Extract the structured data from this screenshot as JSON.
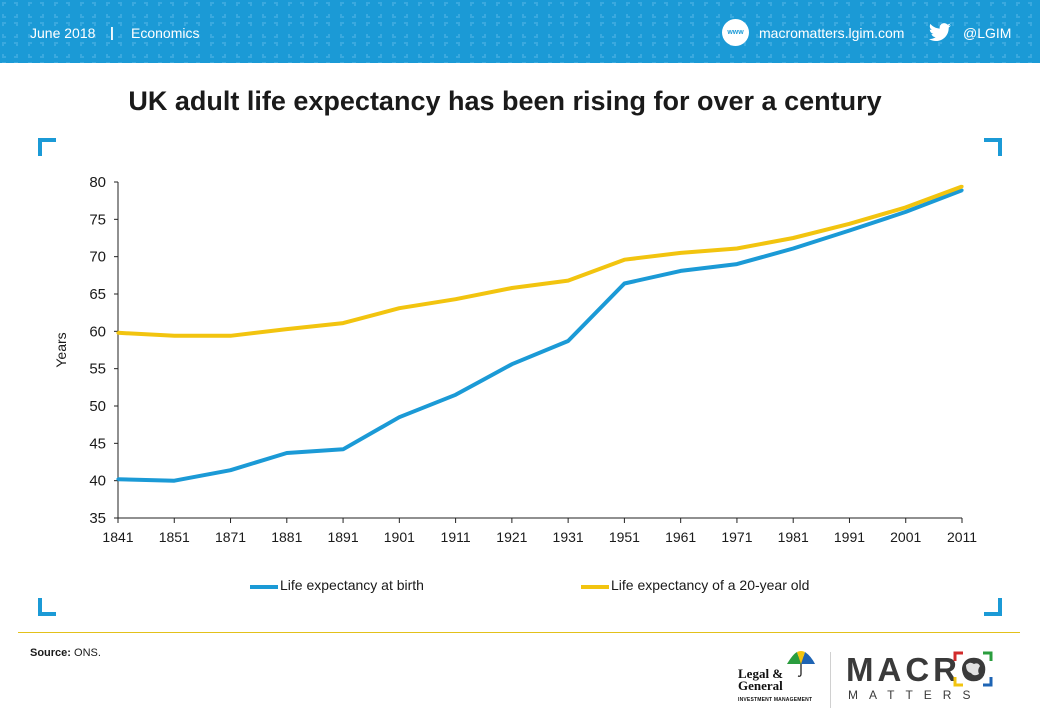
{
  "header": {
    "date": "June 2018",
    "separator": "|",
    "category": "Economics",
    "www_label": "www",
    "website": "macromatters.lgim.com",
    "twitter_handle": "@LGIM"
  },
  "colors": {
    "header_bg": "#1b9ad6",
    "accent_blue": "#1b9ad6",
    "accent_yellow": "#f2c40f",
    "rule": "#e3c11a"
  },
  "chart_data": {
    "type": "line",
    "title": "UK adult life expectancy has been rising for over a century",
    "xlabel": "",
    "ylabel": "Years",
    "ylim": [
      35,
      80
    ],
    "yticks": [
      35,
      40,
      45,
      50,
      55,
      60,
      65,
      70,
      75,
      80
    ],
    "categories": [
      "1841",
      "1851",
      "1871",
      "1881",
      "1891",
      "1901",
      "1911",
      "1921",
      "1931",
      "1951",
      "1961",
      "1971",
      "1981",
      "1991",
      "2001",
      "2011"
    ],
    "series": [
      {
        "name": "Life expectancy at birth",
        "color": "#1b9ad6",
        "values": [
          40.2,
          40.0,
          41.4,
          43.7,
          44.2,
          48.5,
          51.5,
          55.6,
          58.7,
          66.4,
          68.1,
          69.0,
          71.1,
          73.5,
          76.0,
          78.9
        ]
      },
      {
        "name": "Life expectancy of a 20-year old",
        "color": "#f2c40f",
        "values": [
          59.8,
          59.4,
          59.4,
          60.3,
          61.1,
          63.1,
          64.3,
          65.8,
          66.8,
          69.6,
          70.5,
          71.1,
          72.5,
          74.4,
          76.6,
          79.4
        ]
      }
    ],
    "legend_position": "bottom",
    "grid": false
  },
  "footer": {
    "source_label": "Source:",
    "source_text": "ONS.",
    "lg_name_line1": "Legal &",
    "lg_name_line2": "General",
    "lg_subtitle": "INVESTMENT MANAGEMENT",
    "brand_word": "MACRO",
    "brand_subword": "MATTERS"
  }
}
